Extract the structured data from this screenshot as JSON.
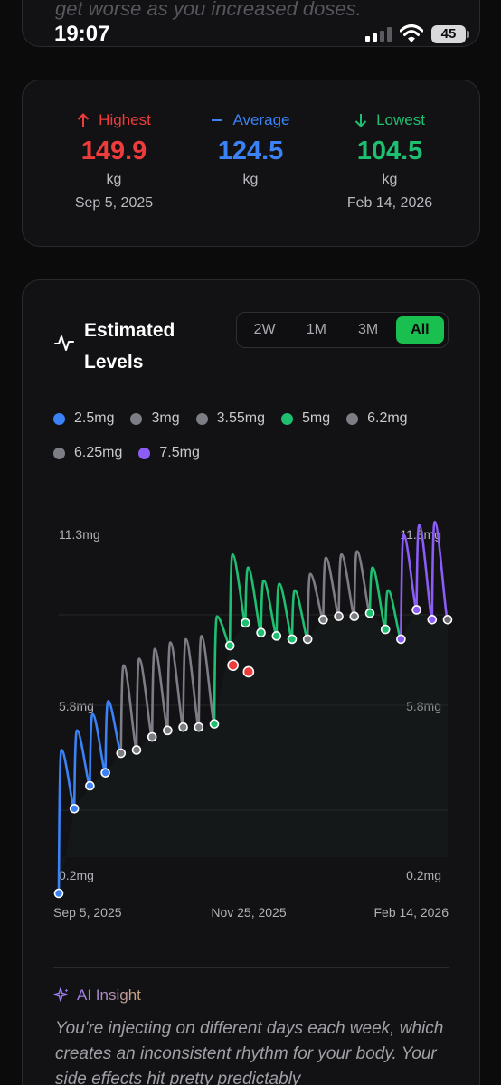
{
  "top_card": {
    "fade_text": "get worse as you increased doses."
  },
  "status_bar": {
    "time": "19:07",
    "battery": "45"
  },
  "stats": {
    "highest": {
      "label": "Highest",
      "value": "149.9",
      "unit": "kg",
      "date": "Sep 5, 2025",
      "color": "#ee3b3b"
    },
    "average": {
      "label": "Average",
      "value": "124.5",
      "unit": "kg",
      "color": "#3b82f6"
    },
    "lowest": {
      "label": "Lowest",
      "value": "104.5",
      "unit": "kg",
      "date": "Feb 14, 2026",
      "color": "#1fbf72"
    }
  },
  "levels": {
    "title": "Estimated Levels",
    "tabs": [
      {
        "label": "2W",
        "active": false
      },
      {
        "label": "1M",
        "active": false
      },
      {
        "label": "3M",
        "active": false
      },
      {
        "label": "All",
        "active": true
      }
    ],
    "legend": [
      {
        "label": "2.5mg",
        "color": "#3b82f6"
      },
      {
        "label": "3mg",
        "color": "#7d7d85"
      },
      {
        "label": "3.55mg",
        "color": "#7d7d85"
      },
      {
        "label": "5mg",
        "color": "#1fbf72"
      },
      {
        "label": "6.2mg",
        "color": "#7d7d85"
      },
      {
        "label": "6.25mg",
        "color": "#7d7d85"
      },
      {
        "label": "7.5mg",
        "color": "#8b5cf6"
      }
    ]
  },
  "chart_data": {
    "type": "line",
    "y_unit": "mg",
    "ylim": [
      0.2,
      11.3
    ],
    "y_tick_labels": [
      "11.3mg",
      "5.8mg",
      "0.2mg"
    ],
    "x_tick_labels": [
      "Sep 5, 2025",
      "Nov 25, 2025",
      "Feb 14, 2026"
    ],
    "series": [
      {
        "name": "2.5mg",
        "color": "#3b82f6",
        "peaks": [
          4.6,
          5.2,
          5.7,
          6.1
        ],
        "troughs": [
          0.2,
          2.8,
          3.5,
          3.9,
          4.2
        ]
      },
      {
        "name": "3mg",
        "color": "#7d7d85",
        "peaks": [
          7.2,
          7.4,
          7.7,
          7.9,
          8.0,
          8.1
        ],
        "troughs": [
          4.5,
          4.6,
          5.0,
          5.2,
          5.3,
          5.3
        ]
      },
      {
        "name": "5mg",
        "color": "#1fbf72",
        "peaks": [
          8.7,
          10.6
        ],
        "troughs": [
          5.4,
          7.8
        ]
      },
      {
        "name": "5mg",
        "color": "#1fbf72",
        "peaks": [
          10.2,
          9.8,
          9.7,
          9.5
        ],
        "troughs": [
          8.5,
          8.2,
          8.1,
          8.0
        ]
      },
      {
        "name": "3mg",
        "color": "#7d7d85",
        "peaks": [
          10.0,
          10.5,
          10.6,
          10.7
        ],
        "troughs": [
          8.0,
          8.6,
          8.7
        ]
      },
      {
        "name": "5mg",
        "color": "#1fbf72",
        "peaks": [
          10.2,
          9.5
        ],
        "troughs": [
          8.8,
          8.3
        ]
      },
      {
        "name": "7.5mg",
        "color": "#8b5cf6",
        "peaks": [
          11.2,
          11.5,
          11.6
        ],
        "troughs": [
          8.0,
          8.9,
          8.6
        ]
      }
    ],
    "highlight_points": [
      {
        "y": 7.2,
        "color": "#ee3b3b"
      },
      {
        "y": 7.0,
        "color": "#ee3b3b"
      }
    ],
    "grid": true
  },
  "insight": {
    "title": "AI Insight",
    "text": "You're injecting on different days each week, which creates an inconsistent rhythm for your body. Your side effects hit pretty predictably"
  }
}
